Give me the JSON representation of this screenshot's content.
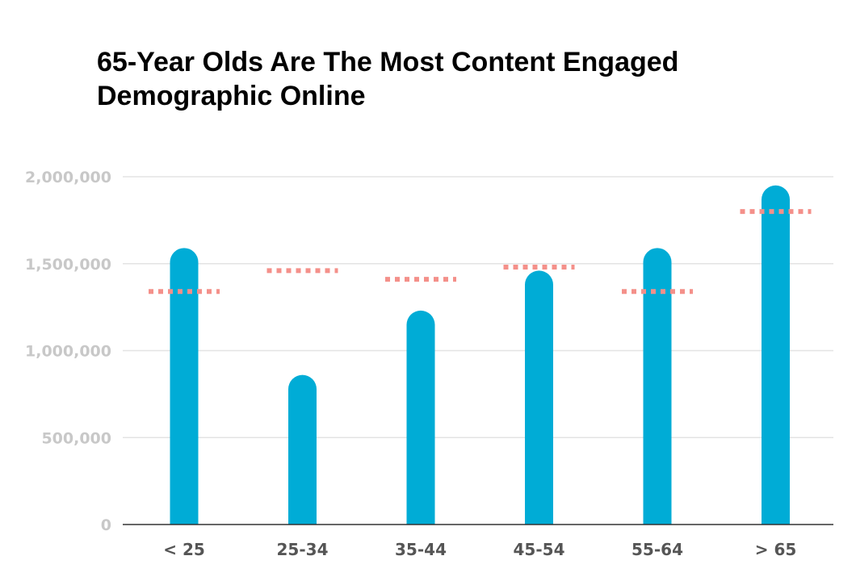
{
  "chart_data": {
    "type": "bar",
    "title_lines": [
      "65-Year Olds Are The Most Content Engaged",
      "Demographic Online"
    ],
    "xlabel": "",
    "ylabel": "",
    "categories": [
      "< 25",
      "25-34",
      "35-44",
      "45-54",
      "55-64",
      "> 65"
    ],
    "series": [
      {
        "values": [
          1590000,
          860000,
          1230000,
          1460000,
          1590000,
          1950000
        ],
        "color": "#00acd6",
        "style": "rounded-bar"
      },
      {
        "values": [
          1340000,
          1460000,
          1410000,
          1480000,
          1340000,
          1800000
        ],
        "color": "#f4908a",
        "style": "dotted-marker"
      }
    ],
    "yticks": [
      {
        "value": 0,
        "label": "0"
      },
      {
        "value": 500000,
        "label": "500,000"
      },
      {
        "value": 1000000,
        "label": "1,000,000"
      },
      {
        "value": 1500000,
        "label": "1,500,000"
      },
      {
        "value": 2000000,
        "label": "2,000,000"
      }
    ],
    "ylim": [
      0,
      2000000
    ],
    "grid": true,
    "legend": "none",
    "colors": {
      "bar": "#00acd6",
      "marker": "#f4908a",
      "grid": "#e3e3e3",
      "axis": "#333333",
      "tick_text": "#c8c8c8",
      "category_text": "#555555"
    }
  }
}
